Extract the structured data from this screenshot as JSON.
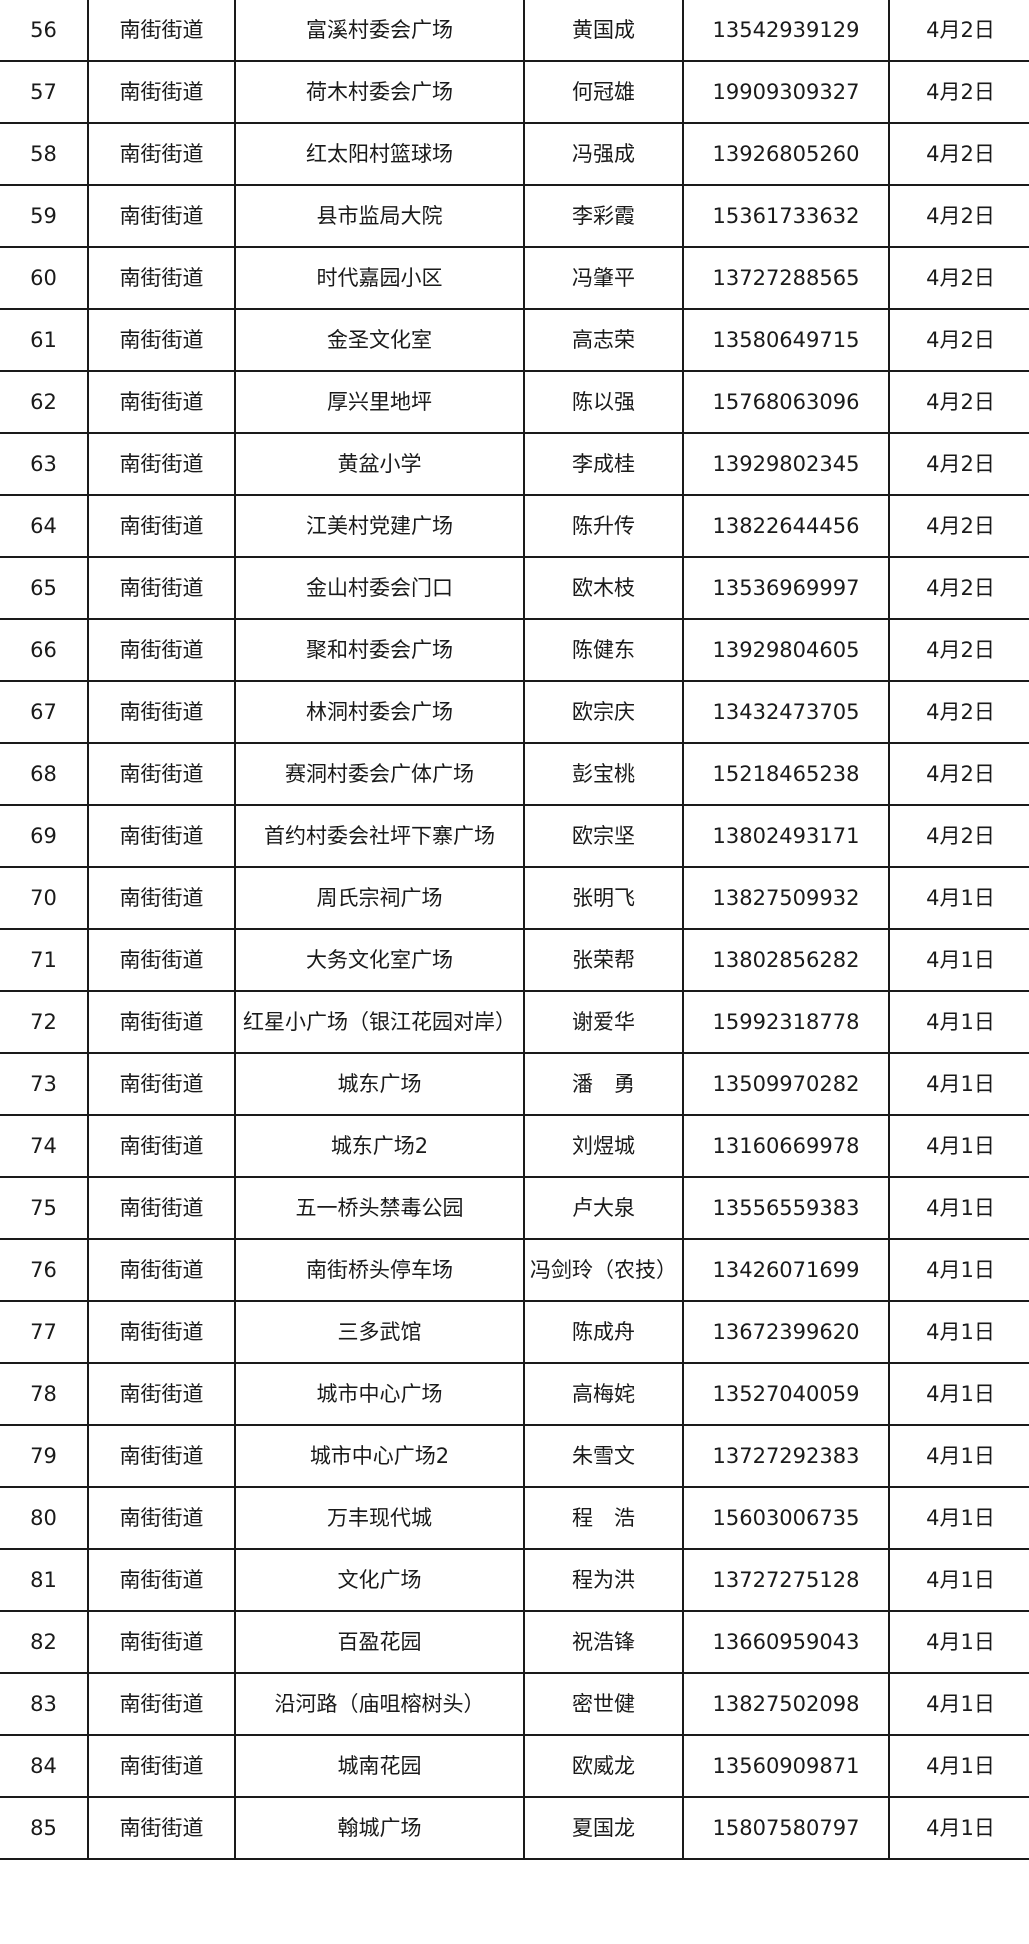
{
  "rows": [
    [
      "56",
      "南街街道",
      "富溪村委会广场",
      "黄国成",
      "13542939129",
      "4月2日"
    ],
    [
      "57",
      "南街街道",
      "荷木村委会广场",
      "何冠雄",
      "19909309327",
      "4月2日"
    ],
    [
      "58",
      "南街街道",
      "红太阳村篮球场",
      "冯强成",
      "13926805260",
      "4月2日"
    ],
    [
      "59",
      "南街街道",
      "县市监局大院",
      "李彩霞",
      "15361733632",
      "4月2日"
    ],
    [
      "60",
      "南街街道",
      "时代嘉园小区",
      "冯肇平",
      "13727288565",
      "4月2日"
    ],
    [
      "61",
      "南街街道",
      "金圣文化室",
      "高志荣",
      "13580649715",
      "4月2日"
    ],
    [
      "62",
      "南街街道",
      "厚兴里地坪",
      "陈以强",
      "15768063096",
      "4月2日"
    ],
    [
      "63",
      "南街街道",
      "黄盆小学",
      "李成桂",
      "13929802345",
      "4月2日"
    ],
    [
      "64",
      "南街街道",
      "江美村党建广场",
      "陈升传",
      "13822644456",
      "4月2日"
    ],
    [
      "65",
      "南街街道",
      "金山村委会门口",
      "欧木枝",
      "13536969997",
      "4月2日"
    ],
    [
      "66",
      "南街街道",
      "聚和村委会广场",
      "陈健东",
      "13929804605",
      "4月2日"
    ],
    [
      "67",
      "南街街道",
      "林洞村委会广场",
      "欧宗庆",
      "13432473705",
      "4月2日"
    ],
    [
      "68",
      "南街街道",
      "赛洞村委会广体广场",
      "彭宝桃",
      "15218465238",
      "4月2日"
    ],
    [
      "69",
      "南街街道",
      "首约村委会社坪下寨广场",
      "欧宗坚",
      "13802493171",
      "4月2日"
    ],
    [
      "70",
      "南街街道",
      "周氏宗祠广场",
      "张明飞",
      "13827509932",
      "4月1日"
    ],
    [
      "71",
      "南街街道",
      "大务文化室广场",
      "张荣帮",
      "13802856282",
      "4月1日"
    ],
    [
      "72",
      "南街街道",
      "红星小广场（银江花园对岸）",
      "谢爱华",
      "15992318778",
      "4月1日"
    ],
    [
      "73",
      "南街街道",
      "城东广场",
      "潘　勇",
      "13509970282",
      "4月1日"
    ],
    [
      "74",
      "南街街道",
      "城东广场2",
      "刘煜城",
      "13160669978",
      "4月1日"
    ],
    [
      "75",
      "南街街道",
      "五一桥头禁毒公园",
      "卢大泉",
      "13556559383",
      "4月1日"
    ],
    [
      "76",
      "南街街道",
      "南街桥头停车场",
      "冯剑玲（农技）",
      "13426071699",
      "4月1日"
    ],
    [
      "77",
      "南街街道",
      "三多武馆",
      "陈成舟",
      "13672399620",
      "4月1日"
    ],
    [
      "78",
      "南街街道",
      "城市中心广场",
      "高梅姹",
      "13527040059",
      "4月1日"
    ],
    [
      "79",
      "南街街道",
      "城市中心广场2",
      "朱雪文",
      "13727292383",
      "4月1日"
    ],
    [
      "80",
      "南街街道",
      "万丰现代城",
      "程　浩",
      "15603006735",
      "4月1日"
    ],
    [
      "81",
      "南街街道",
      "文化广场",
      "程为洪",
      "13727275128",
      "4月1日"
    ],
    [
      "82",
      "南街街道",
      "百盈花园",
      "祝浩锋",
      "13660959043",
      "4月1日"
    ],
    [
      "83",
      "南街街道",
      "沿河路（庙咀榕树头）",
      "密世健",
      "13827502098",
      "4月1日"
    ],
    [
      "84",
      "南街街道",
      "城南花园",
      "欧威龙",
      "13560909871",
      "4月1日"
    ],
    [
      "85",
      "南街街道",
      "翰城广场",
      "夏国龙",
      "15807580797",
      "4月1日"
    ]
  ]
}
